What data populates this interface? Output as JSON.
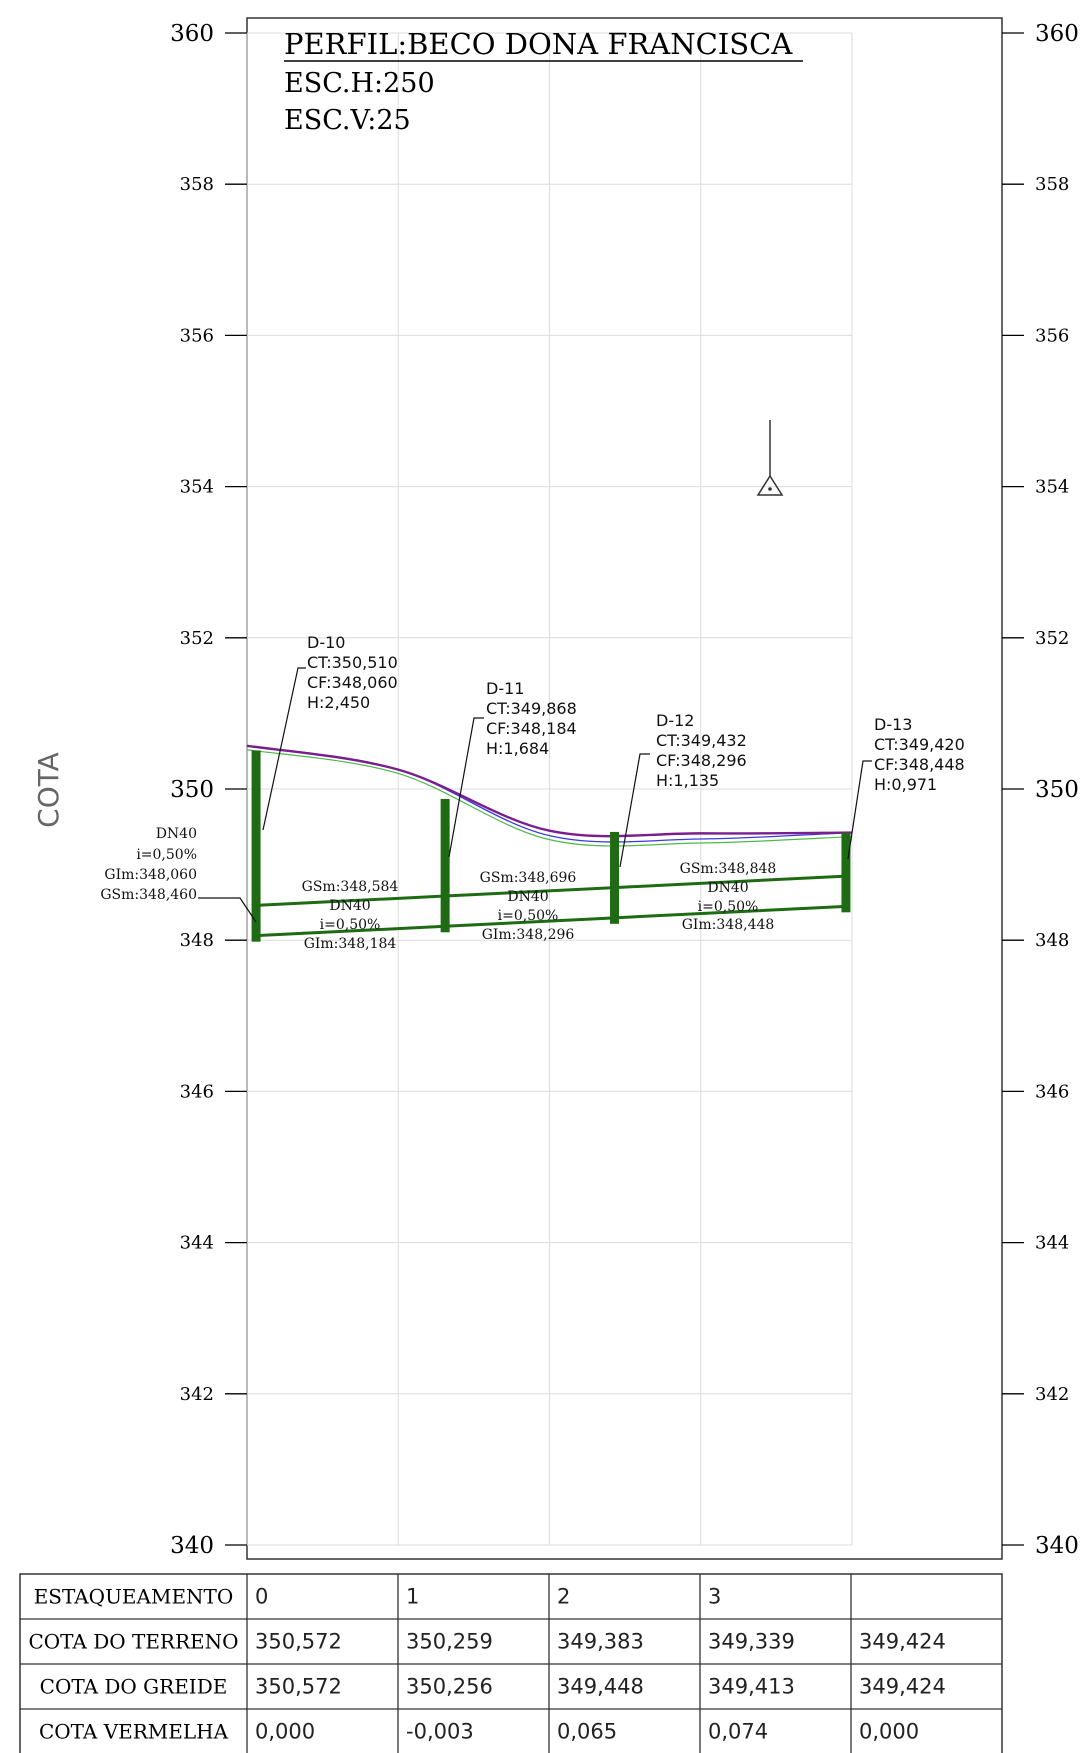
{
  "title": {
    "line1": "PERFIL:BECO DONA FRANCISCA",
    "line2": "ESC.H:250",
    "line3": "ESC.V:25"
  },
  "axis_label": "COTA",
  "y_ticks": [
    "360",
    "358",
    "356",
    "354",
    "352",
    "350",
    "348",
    "346",
    "344",
    "342",
    "340"
  ],
  "y_ticks_big": [
    "360",
    "350",
    "340"
  ],
  "manholes": [
    {
      "name": "D-10",
      "ct": "CT:350,510",
      "cf": "CF:348,060",
      "h": "H:2,450"
    },
    {
      "name": "D-11",
      "ct": "CT:349,868",
      "cf": "CF:348,184",
      "h": "H:1,684"
    },
    {
      "name": "D-12",
      "ct": "CT:349,432",
      "cf": "CF:348,296",
      "h": "H:1,135"
    },
    {
      "name": "D-13",
      "ct": "CT:349,420",
      "cf": "CF:348,448",
      "h": "H:0,971"
    }
  ],
  "start_pipe": {
    "dn": "DN40",
    "i": "i=0,50%",
    "gim": "GIm:348,060",
    "gsm": "GSm:348,460"
  },
  "pipes": [
    {
      "gsm": "GSm:348,584",
      "dn": "DN40",
      "i": "i=0,50%",
      "gim": "GIm:348,184"
    },
    {
      "gsm": "GSm:348,696",
      "dn": "DN40",
      "i": "i=0,50%",
      "gim": "GIm:348,296"
    },
    {
      "gsm": "GSm:348,848",
      "dn": "DN40",
      "i": "i=0,50%",
      "gim": "GIm:348,448"
    }
  ],
  "chart_data": {
    "type": "line",
    "ylabel": "COTA",
    "ylim": [
      340,
      360
    ],
    "stations": [
      0,
      1,
      2,
      3,
      4
    ],
    "series": [
      {
        "name": "terreno",
        "values": [
          350.572,
          350.259,
          349.383,
          349.339,
          349.424
        ]
      },
      {
        "name": "greide",
        "values": [
          350.572,
          350.256,
          349.448,
          349.413,
          349.424
        ]
      }
    ],
    "pipe_segments": [
      {
        "from": "D-10",
        "to": "D-11",
        "gsm_start": 348.46,
        "gsm_end": 348.584,
        "gim_start": 348.06,
        "gim_end": 348.184
      },
      {
        "from": "D-11",
        "to": "D-12",
        "gsm_start": 348.584,
        "gsm_end": 348.696,
        "gim_start": 348.184,
        "gim_end": 348.296
      },
      {
        "from": "D-12",
        "to": "D-13",
        "gsm_start": 348.696,
        "gsm_end": 348.848,
        "gim_start": 348.296,
        "gim_end": 348.448
      }
    ],
    "manhole_levels": [
      {
        "name": "D-10",
        "station": 0.06,
        "ct": 350.51,
        "cf": 348.06
      },
      {
        "name": "D-11",
        "station": 1.31,
        "ct": 349.868,
        "cf": 348.184
      },
      {
        "name": "D-12",
        "station": 2.43,
        "ct": 349.432,
        "cf": 348.296
      },
      {
        "name": "D-13",
        "station": 3.96,
        "ct": 349.42,
        "cf": 348.448
      }
    ],
    "benchmark": {
      "station": 3.45,
      "level": 354.0
    }
  },
  "table": {
    "rows": [
      {
        "label": "ESTAQUEAMENTO",
        "values": [
          "0",
          "1",
          "2",
          "3",
          ""
        ]
      },
      {
        "label": "COTA DO TERRENO",
        "values": [
          "350,572",
          "350,259",
          "349,383",
          "349,339",
          "349,424"
        ]
      },
      {
        "label": "COTA DO GREIDE",
        "values": [
          "350,572",
          "350,256",
          "349,448",
          "349,413",
          "349,424"
        ]
      },
      {
        "label": "COTA VERMELHA",
        "values": [
          "0,000",
          "-0,003",
          "0,065",
          "0,074",
          "0,000"
        ]
      }
    ]
  },
  "colors": {
    "pipe": "#1e6b14",
    "terreno": "#3b3bd9",
    "greide": "#7a1e8f",
    "terreno_alt": "#4fb84a",
    "grid": "#dcdcdc"
  }
}
